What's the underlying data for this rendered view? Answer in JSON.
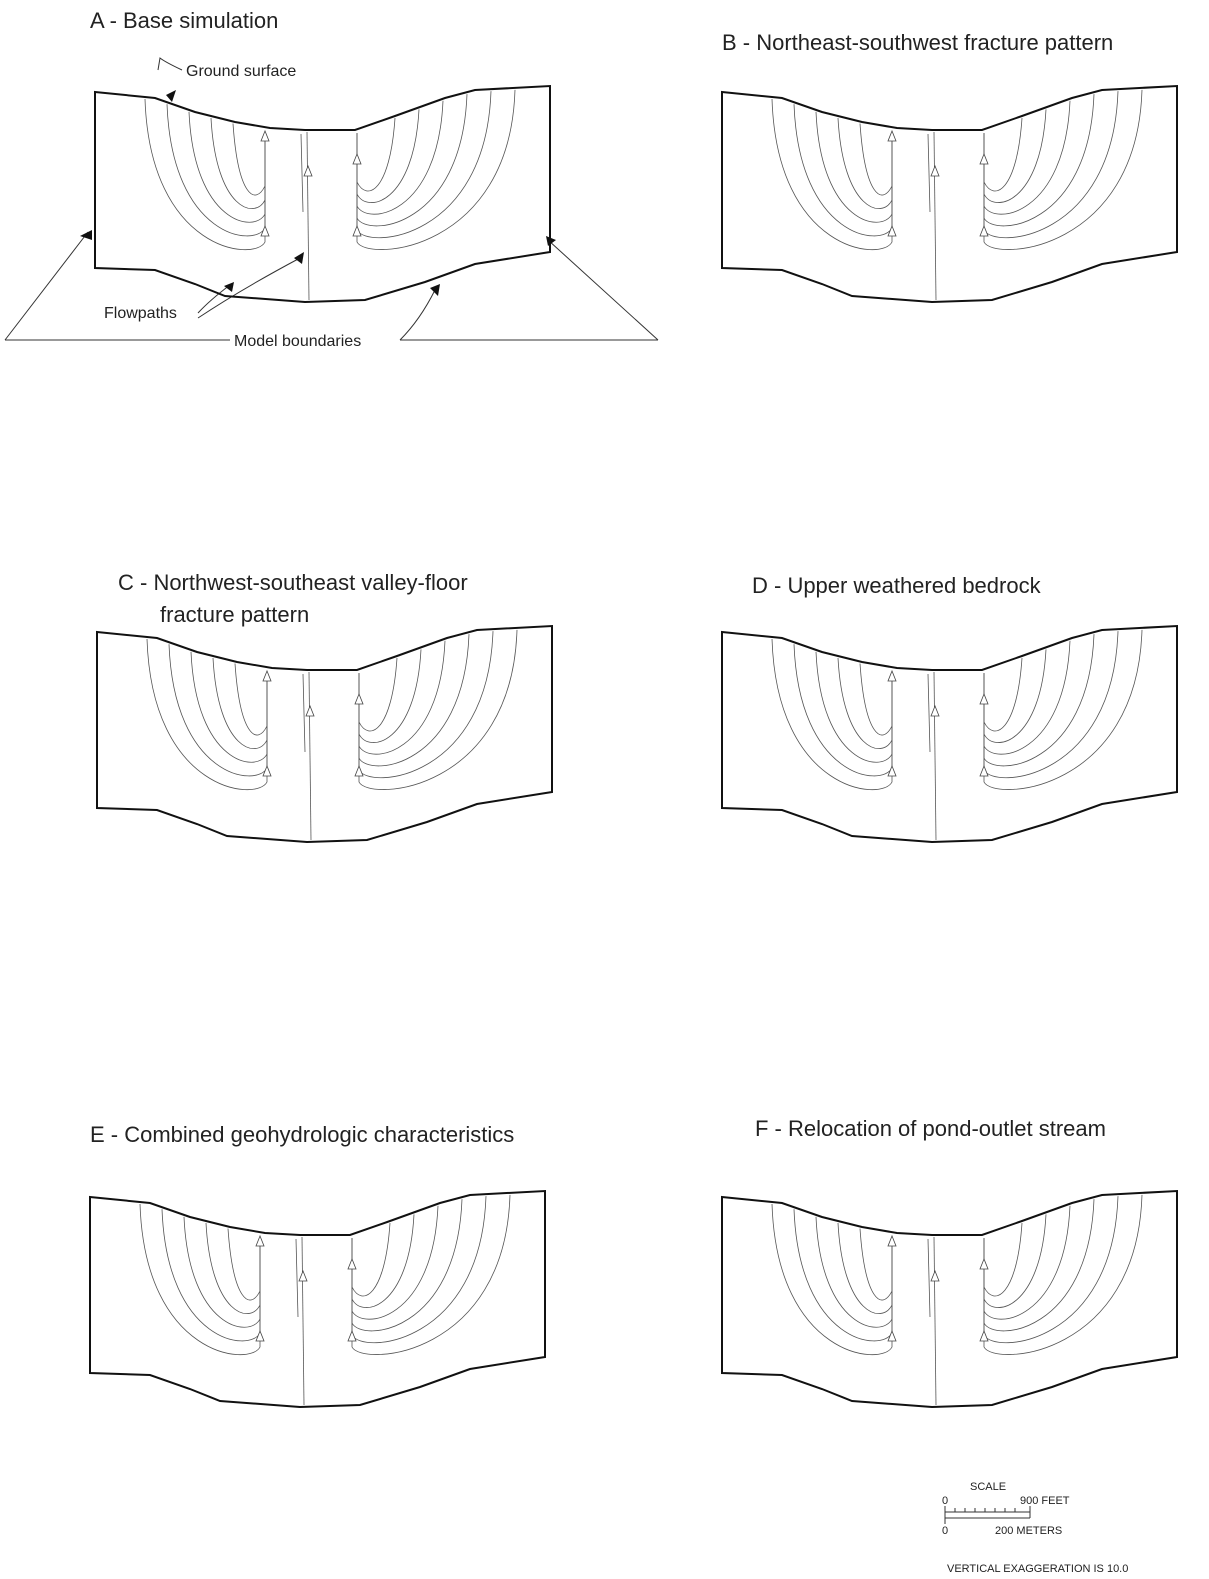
{
  "panels": [
    {
      "title_lines": [
        "A - Base simulation"
      ]
    },
    {
      "title_lines": [
        "B - Northeast-southwest fracture pattern"
      ]
    },
    {
      "title_lines": [
        "C - Northwest-southeast valley-floor",
        "fracture pattern"
      ]
    },
    {
      "title_lines": [
        "D - Upper weathered bedrock"
      ]
    },
    {
      "title_lines": [
        "E - Combined geohydrologic characteristics"
      ]
    },
    {
      "title_lines": [
        "F - Relocation of pond-outlet stream"
      ]
    }
  ],
  "annotations": {
    "ground_surface": "Ground surface",
    "flowpaths": "Flowpaths",
    "model_boundaries": "Model boundaries"
  },
  "scale": {
    "heading": "SCALE",
    "feet_zero": "0",
    "feet_label": "900 FEET",
    "meters_zero": "0",
    "meters_label": "200 METERS",
    "exaggeration": "VERTICAL EXAGGERATION IS 10.0"
  }
}
